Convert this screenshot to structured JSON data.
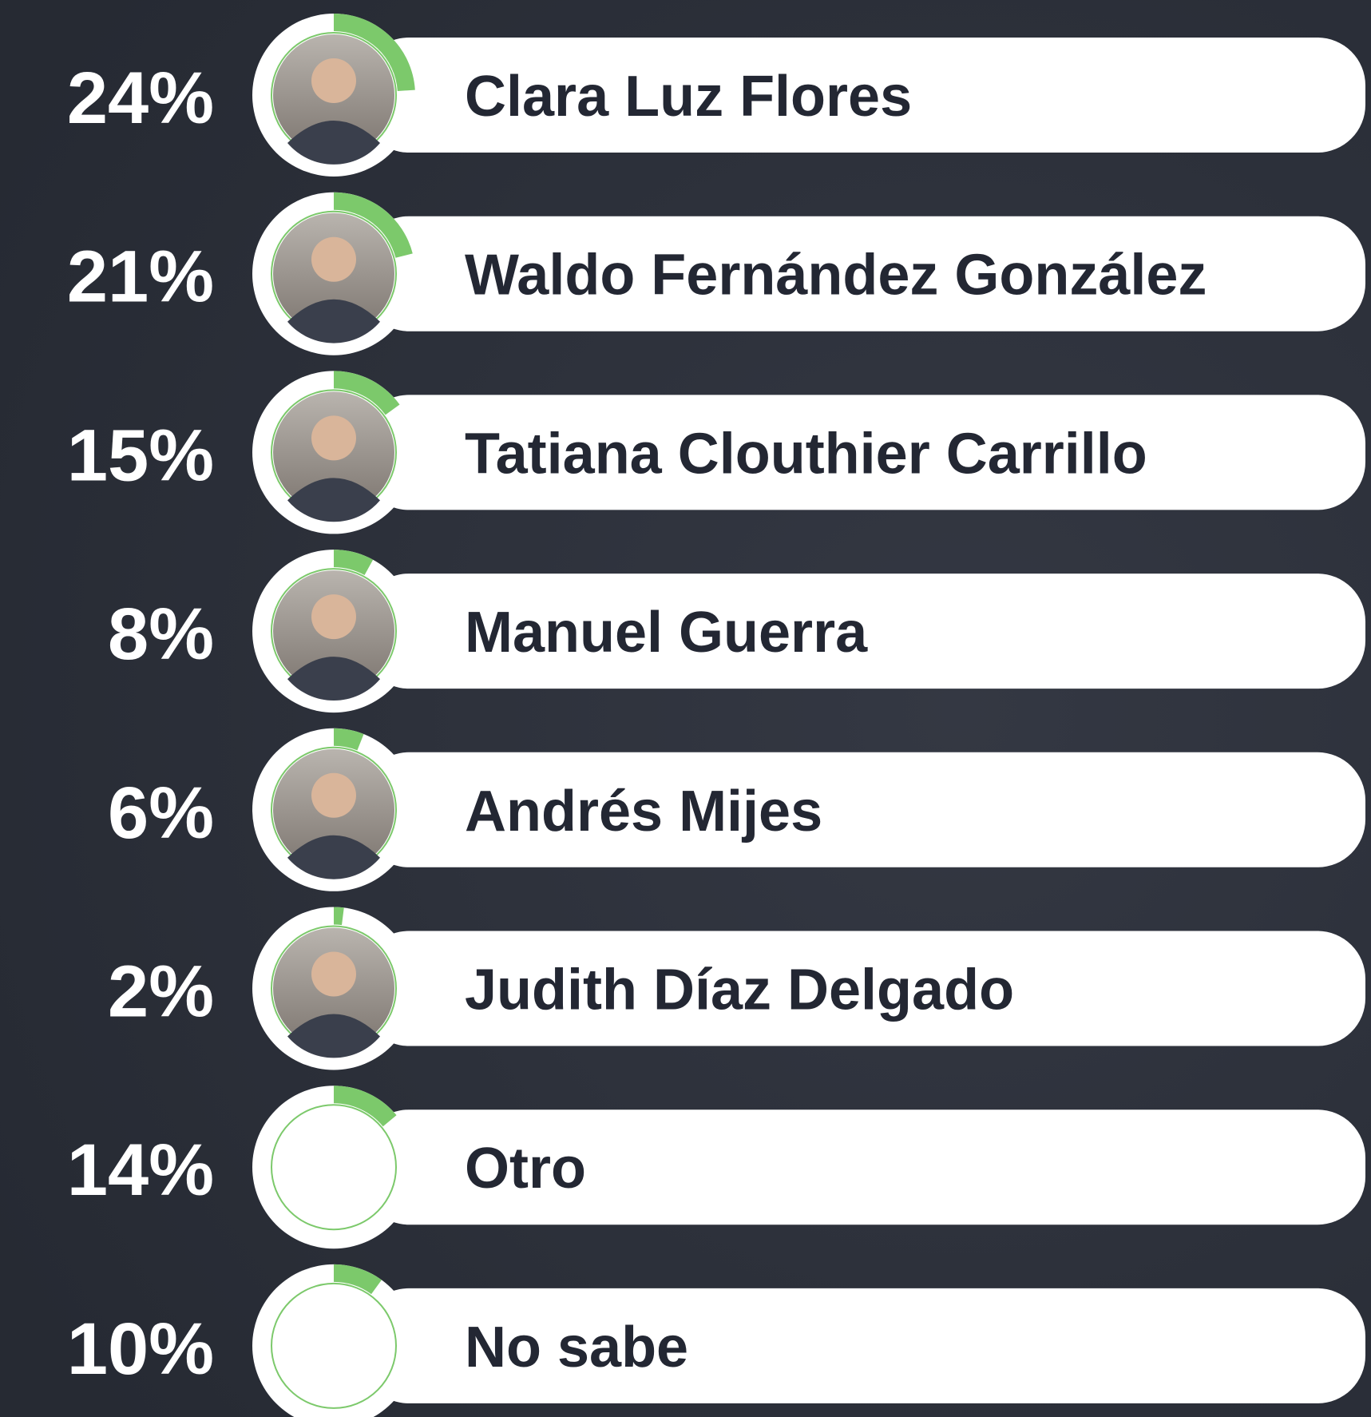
{
  "chart_data": {
    "type": "ring",
    "categories": [
      "Clara Luz Flores",
      "Waldo Fernández González",
      "Tatiana Clouthier Carrillo",
      "Manuel Guerra",
      "Andrés Mijes",
      "Judith Díaz Delgado",
      "Otro",
      "No sabe"
    ],
    "values": [
      24,
      21,
      15,
      8,
      6,
      2,
      14,
      10
    ],
    "value_labels": [
      "24%",
      "21%",
      "15%",
      "8%",
      "6%",
      "2%",
      "14%",
      "10%"
    ],
    "color": "#7cc96b"
  }
}
